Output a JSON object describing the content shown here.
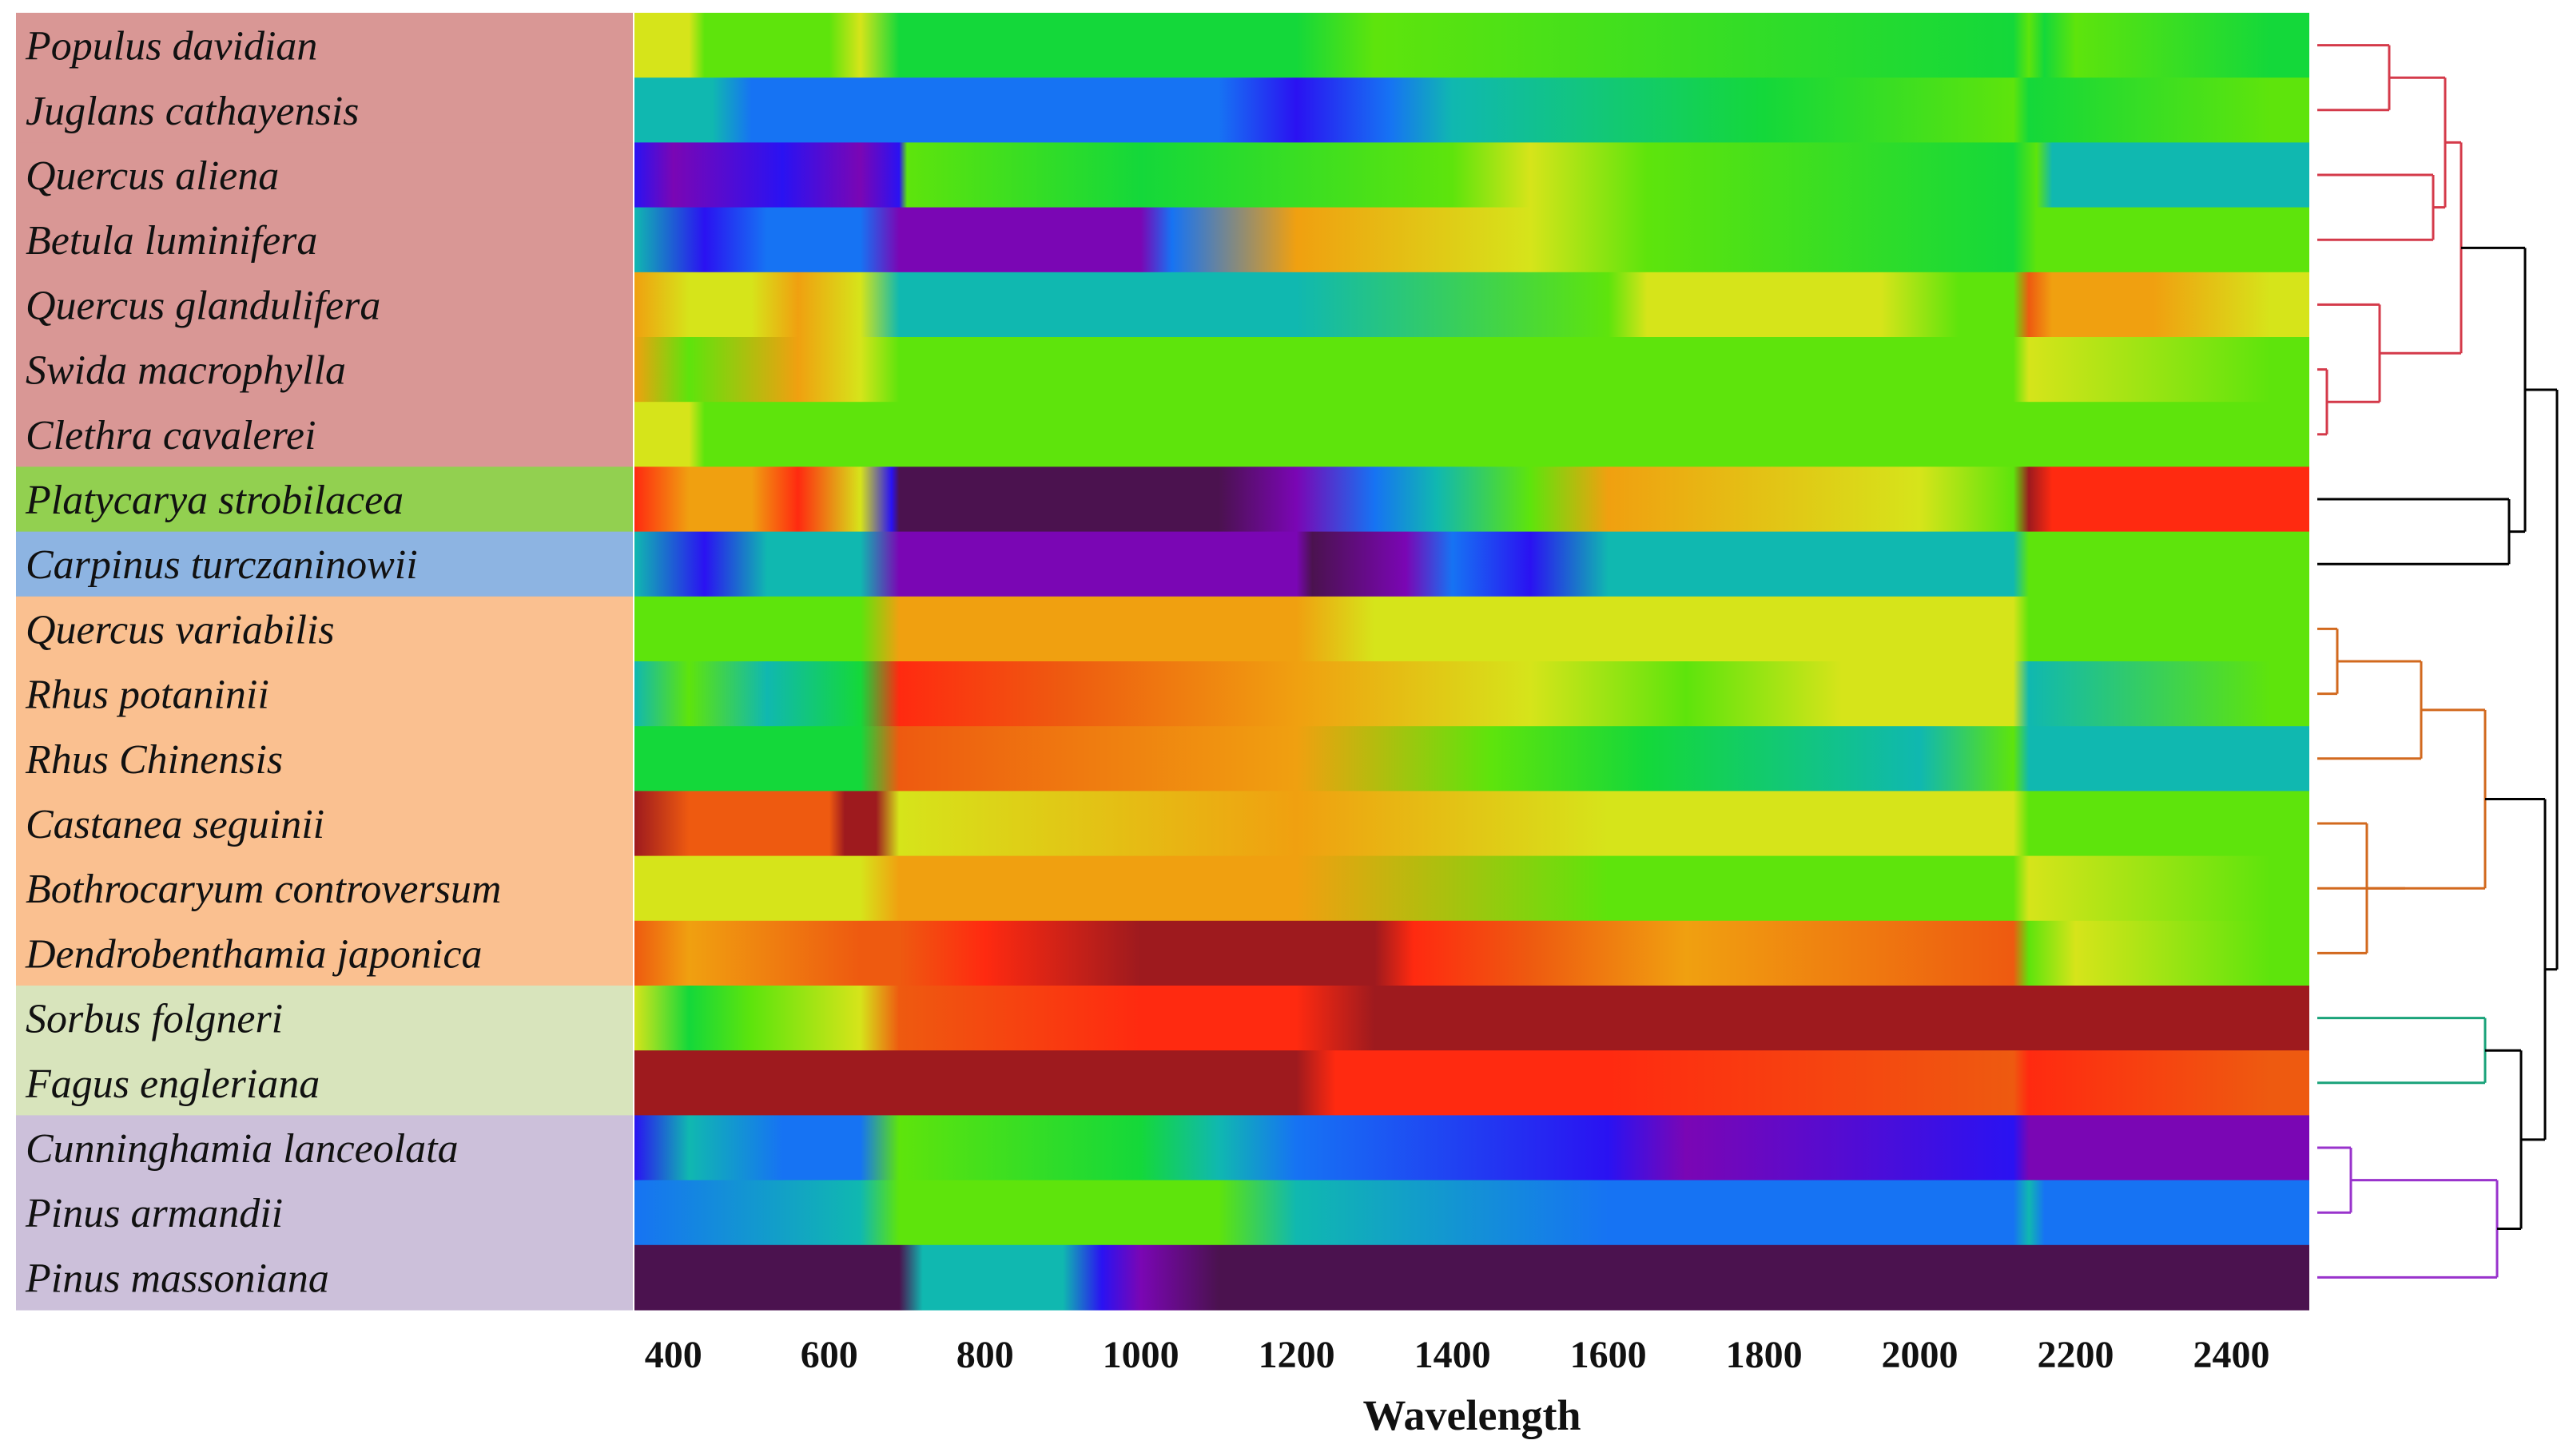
{
  "chart_data": {
    "type": "heatmap",
    "title": "",
    "xlabel": "Wavelength",
    "ylabel": "",
    "xlim": [
      350,
      2500
    ],
    "xticks": [
      400,
      600,
      800,
      1000,
      1200,
      1400,
      1600,
      1800,
      2000,
      2200,
      2400
    ],
    "rows": [
      {
        "label": "Populus davidian",
        "group": 1
      },
      {
        "label": "Juglans cathayensis",
        "group": 1
      },
      {
        "label": "Quercus aliena",
        "group": 1
      },
      {
        "label": "Betula luminifera",
        "group": 1
      },
      {
        "label": "Quercus glandulifera",
        "group": 1
      },
      {
        "label": "Swida macrophylla",
        "group": 1
      },
      {
        "label": "Clethra cavalerei",
        "group": 1
      },
      {
        "label": "Platycarya strobilacea",
        "group": 2
      },
      {
        "label": "Carpinus turczaninowii",
        "group": 3
      },
      {
        "label": "Quercus variabilis",
        "group": 4
      },
      {
        "label": "Rhus potaninii",
        "group": 4
      },
      {
        "label": "Rhus Chinensis",
        "group": 4
      },
      {
        "label": "Castanea seguinii",
        "group": 4
      },
      {
        "label": "Bothrocaryum controversum",
        "group": 4
      },
      {
        "label": "Dendrobenthamia japonica",
        "group": 4
      },
      {
        "label": "Sorbus folgneri",
        "group": 5
      },
      {
        "label": "Fagus engleriana",
        "group": 5
      },
      {
        "label": "Cunninghamia lanceolata",
        "group": 6
      },
      {
        "label": "Pinus armandii",
        "group": 6
      },
      {
        "label": "Pinus massoniana",
        "group": 6
      }
    ],
    "group_colors": {
      "1": "#d99795",
      "2": "#92d050",
      "3": "#8db4e2",
      "4": "#fac090",
      "5": "#d8e4bc",
      "6": "#ccc0da"
    },
    "dendrogram_colors": {
      "1": "#d43a4a",
      "2": "#2bb673",
      "3": "#1f4fd8",
      "4": "#d2691e",
      "5": "#1aa37a",
      "6": "#9933cc",
      "root": "#000000"
    },
    "colormap": [
      "#4b124f",
      "#7a06b4",
      "#2a12f2",
      "#1673f3",
      "#10b8b0",
      "#14d83a",
      "#5ee40c",
      "#d6e41a",
      "#f0a010",
      "#ee5a10",
      "#ff2a10",
      "#9e1a1e"
    ],
    "heat_rows": [
      [
        [
          350,
          7
        ],
        [
          420,
          7
        ],
        [
          440,
          6
        ],
        [
          600,
          6
        ],
        [
          640,
          7
        ],
        [
          690,
          5
        ],
        [
          1200,
          5
        ],
        [
          1300,
          6
        ],
        [
          2120,
          5
        ],
        [
          2140,
          6
        ],
        [
          2160,
          5
        ],
        [
          2200,
          6
        ],
        [
          2450,
          5
        ]
      ],
      [
        [
          350,
          4
        ],
        [
          450,
          4
        ],
        [
          500,
          3
        ],
        [
          1100,
          3
        ],
        [
          1200,
          2
        ],
        [
          1320,
          3
        ],
        [
          1400,
          4
        ],
        [
          1800,
          5
        ],
        [
          2120,
          6
        ],
        [
          2140,
          5
        ],
        [
          2450,
          6
        ]
      ],
      [
        [
          350,
          2
        ],
        [
          400,
          1
        ],
        [
          540,
          2
        ],
        [
          640,
          1
        ],
        [
          690,
          2
        ],
        [
          700,
          6
        ],
        [
          1000,
          5
        ],
        [
          1400,
          6
        ],
        [
          1500,
          7
        ],
        [
          1650,
          6
        ],
        [
          2120,
          5
        ],
        [
          2150,
          6
        ],
        [
          2170,
          4
        ],
        [
          2450,
          4
        ]
      ],
      [
        [
          350,
          4
        ],
        [
          440,
          2
        ],
        [
          520,
          3
        ],
        [
          640,
          3
        ],
        [
          690,
          1
        ],
        [
          1000,
          1
        ],
        [
          1040,
          3
        ],
        [
          1200,
          8
        ],
        [
          1500,
          7
        ],
        [
          1650,
          6
        ],
        [
          2120,
          5
        ],
        [
          2150,
          6
        ],
        [
          2450,
          6
        ]
      ],
      [
        [
          350,
          8
        ],
        [
          420,
          7
        ],
        [
          500,
          7
        ],
        [
          560,
          8
        ],
        [
          640,
          7
        ],
        [
          690,
          4
        ],
        [
          1200,
          4
        ],
        [
          1600,
          6
        ],
        [
          1650,
          7
        ],
        [
          1950,
          7
        ],
        [
          2050,
          6
        ],
        [
          2120,
          6
        ],
        [
          2140,
          9
        ],
        [
          2170,
          8
        ],
        [
          2300,
          8
        ],
        [
          2450,
          7
        ]
      ],
      [
        [
          350,
          8
        ],
        [
          420,
          6
        ],
        [
          560,
          8
        ],
        [
          640,
          7
        ],
        [
          690,
          6
        ],
        [
          1200,
          6
        ],
        [
          1500,
          6
        ],
        [
          2120,
          6
        ],
        [
          2140,
          7
        ],
        [
          2450,
          6
        ]
      ],
      [
        [
          350,
          7
        ],
        [
          420,
          7
        ],
        [
          440,
          6
        ],
        [
          640,
          6
        ],
        [
          690,
          6
        ],
        [
          2450,
          6
        ]
      ],
      [
        [
          350,
          10
        ],
        [
          420,
          8
        ],
        [
          500,
          8
        ],
        [
          560,
          10
        ],
        [
          640,
          7
        ],
        [
          680,
          2
        ],
        [
          690,
          0
        ],
        [
          1100,
          0
        ],
        [
          1200,
          1
        ],
        [
          1300,
          3
        ],
        [
          1380,
          4
        ],
        [
          1500,
          6
        ],
        [
          1600,
          8
        ],
        [
          2000,
          7
        ],
        [
          2120,
          6
        ],
        [
          2140,
          11
        ],
        [
          2170,
          10
        ],
        [
          2450,
          10
        ]
      ],
      [
        [
          350,
          4
        ],
        [
          440,
          2
        ],
        [
          520,
          4
        ],
        [
          640,
          4
        ],
        [
          690,
          1
        ],
        [
          1200,
          1
        ],
        [
          1220,
          0
        ],
        [
          1340,
          1
        ],
        [
          1400,
          3
        ],
        [
          1500,
          2
        ],
        [
          1600,
          4
        ],
        [
          1800,
          4
        ],
        [
          2120,
          4
        ],
        [
          2140,
          6
        ],
        [
          2450,
          6
        ]
      ],
      [
        [
          350,
          6
        ],
        [
          640,
          6
        ],
        [
          690,
          8
        ],
        [
          1200,
          8
        ],
        [
          1300,
          7
        ],
        [
          1700,
          7
        ],
        [
          2120,
          7
        ],
        [
          2140,
          6
        ],
        [
          2450,
          6
        ]
      ],
      [
        [
          350,
          4
        ],
        [
          420,
          6
        ],
        [
          520,
          4
        ],
        [
          640,
          5
        ],
        [
          690,
          10
        ],
        [
          900,
          9
        ],
        [
          1200,
          8
        ],
        [
          1500,
          7
        ],
        [
          1700,
          6
        ],
        [
          1900,
          7
        ],
        [
          2120,
          7
        ],
        [
          2140,
          4
        ],
        [
          2450,
          6
        ]
      ],
      [
        [
          350,
          5
        ],
        [
          640,
          5
        ],
        [
          690,
          9
        ],
        [
          1200,
          8
        ],
        [
          1450,
          6
        ],
        [
          1650,
          5
        ],
        [
          2000,
          4
        ],
        [
          2120,
          6
        ],
        [
          2140,
          4
        ],
        [
          2450,
          4
        ]
      ],
      [
        [
          350,
          11
        ],
        [
          420,
          9
        ],
        [
          600,
          9
        ],
        [
          620,
          11
        ],
        [
          660,
          11
        ],
        [
          690,
          7
        ],
        [
          1200,
          8
        ],
        [
          1600,
          7
        ],
        [
          2120,
          7
        ],
        [
          2140,
          6
        ],
        [
          2450,
          6
        ]
      ],
      [
        [
          350,
          7
        ],
        [
          640,
          7
        ],
        [
          690,
          8
        ],
        [
          1200,
          8
        ],
        [
          1600,
          6
        ],
        [
          2120,
          6
        ],
        [
          2140,
          7
        ],
        [
          2450,
          6
        ]
      ],
      [
        [
          350,
          9
        ],
        [
          420,
          8
        ],
        [
          640,
          9
        ],
        [
          690,
          9
        ],
        [
          800,
          10
        ],
        [
          1000,
          11
        ],
        [
          1300,
          11
        ],
        [
          1350,
          10
        ],
        [
          1500,
          9
        ],
        [
          1700,
          8
        ],
        [
          2120,
          9
        ],
        [
          2140,
          6
        ],
        [
          2200,
          7
        ],
        [
          2450,
          6
        ]
      ],
      [
        [
          350,
          7
        ],
        [
          420,
          5
        ],
        [
          500,
          6
        ],
        [
          640,
          7
        ],
        [
          690,
          9
        ],
        [
          1000,
          10
        ],
        [
          1200,
          10
        ],
        [
          1300,
          11
        ],
        [
          2120,
          11
        ],
        [
          2140,
          11
        ],
        [
          2450,
          11
        ]
      ],
      [
        [
          350,
          11
        ],
        [
          640,
          11
        ],
        [
          690,
          11
        ],
        [
          1200,
          11
        ],
        [
          1250,
          10
        ],
        [
          1600,
          10
        ],
        [
          2120,
          9
        ],
        [
          2140,
          10
        ],
        [
          2450,
          9
        ]
      ],
      [
        [
          350,
          2
        ],
        [
          420,
          4
        ],
        [
          540,
          3
        ],
        [
          640,
          3
        ],
        [
          690,
          6
        ],
        [
          1000,
          5
        ],
        [
          1100,
          4
        ],
        [
          1200,
          3
        ],
        [
          1600,
          2
        ],
        [
          1700,
          1
        ],
        [
          2120,
          2
        ],
        [
          2140,
          1
        ],
        [
          2450,
          1
        ]
      ],
      [
        [
          350,
          3
        ],
        [
          640,
          4
        ],
        [
          690,
          6
        ],
        [
          1100,
          6
        ],
        [
          1200,
          4
        ],
        [
          1600,
          3
        ],
        [
          2120,
          3
        ],
        [
          2140,
          4
        ],
        [
          2160,
          3
        ],
        [
          2450,
          3
        ]
      ],
      [
        [
          350,
          0
        ],
        [
          690,
          0
        ],
        [
          720,
          4
        ],
        [
          900,
          4
        ],
        [
          950,
          2
        ],
        [
          1000,
          1
        ],
        [
          1100,
          0
        ],
        [
          2450,
          0
        ]
      ]
    ]
  }
}
